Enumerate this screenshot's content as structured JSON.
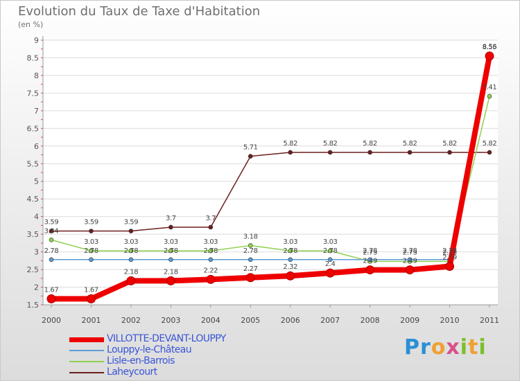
{
  "title": "Evolution du Taux de Taxe d'Habitation",
  "subtitle": "(en %)",
  "brand": {
    "letters": [
      "P",
      "r",
      "o",
      "x",
      "i",
      "t",
      "i"
    ],
    "colors": [
      "#2a8fd6",
      "#2a8fd6",
      "#f0a030",
      "#d94f8a",
      "#7bbf2a",
      "#f0a030",
      "#7bbf2a"
    ]
  },
  "chart_data": {
    "type": "line",
    "title": "Evolution du Taux de Taxe d'Habitation",
    "ylabel": "(en %)",
    "xlabel": "",
    "categories": [
      "2000",
      "2001",
      "2002",
      "2003",
      "2004",
      "2005",
      "2006",
      "2007",
      "2008",
      "2009",
      "2010",
      "2011"
    ],
    "ylim": [
      1.5,
      9
    ],
    "yticks": [
      "1.5",
      "2",
      "2.5",
      "3",
      "3.5",
      "4",
      "4.5",
      "5",
      "5.5",
      "6",
      "6.5",
      "7",
      "7.5",
      "8",
      "8.5",
      "9"
    ],
    "grid": "horizontal",
    "series": [
      {
        "name": "VILLOTTE-DEVANT-LOUPPY",
        "color": "#ee0000",
        "values": [
          1.67,
          1.67,
          2.18,
          2.18,
          2.22,
          2.27,
          2.32,
          2.4,
          2.49,
          2.49,
          2.59,
          8.55
        ],
        "labels": [
          "1.67",
          "1.67",
          "2.18",
          "2.18",
          "2.22",
          "2.27",
          "2.32",
          "2.4",
          "2.49",
          "2.49",
          "2.59",
          "8.55"
        ]
      },
      {
        "name": "Louppy-le-Château",
        "color": "#5b9bd5",
        "values": [
          2.78,
          2.78,
          2.78,
          2.78,
          2.78,
          2.78,
          2.78,
          2.78,
          2.78,
          2.78,
          2.78,
          8.56
        ],
        "labels": [
          "2.78",
          "2.78",
          "2.78",
          "2.78",
          "2.78",
          "2.78",
          "2.78",
          "2.78",
          "2.78",
          "2.78",
          "2.78",
          "8.56"
        ]
      },
      {
        "name": "Lisle-en-Barrois",
        "color": "#8fd14f",
        "values": [
          3.34,
          3.03,
          3.03,
          3.03,
          3.03,
          3.18,
          3.03,
          3.03,
          2.73,
          2.73,
          2.73,
          7.41
        ],
        "labels": [
          "3.34",
          "3.03",
          "3.03",
          "3.03",
          "3.03",
          "3.18",
          "3.03",
          "3.03",
          "2.73",
          "2.73",
          "2.73",
          "7.41"
        ]
      },
      {
        "name": "Laheycourt",
        "color": "#6b1f1f",
        "values": [
          3.59,
          3.59,
          3.59,
          3.7,
          3.7,
          5.71,
          5.82,
          5.82,
          5.82,
          5.82,
          5.82,
          5.82
        ],
        "labels": [
          "3.59",
          "3.59",
          "3.59",
          "3.7",
          "3.7",
          "5.71",
          "5.82",
          "5.82",
          "5.82",
          "5.82",
          "5.82",
          "5.82"
        ]
      }
    ]
  }
}
